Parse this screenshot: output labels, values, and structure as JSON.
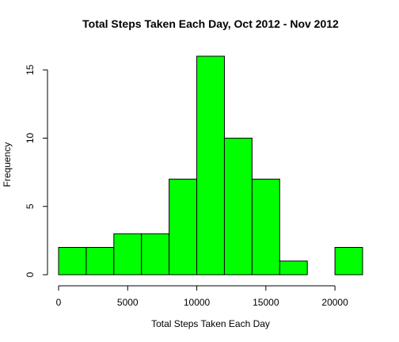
{
  "chart_data": {
    "type": "bar",
    "subtype": "histogram",
    "title": "Total Steps Taken Each Day, Oct 2012 - Nov 2012",
    "xlabel": "Total Steps Taken Each Day",
    "ylabel": "Frequency",
    "bin_edges": [
      0,
      2000,
      4000,
      6000,
      8000,
      10000,
      12000,
      14000,
      16000,
      18000,
      20000,
      22000
    ],
    "values": [
      2,
      2,
      3,
      3,
      7,
      16,
      10,
      7,
      1,
      0,
      2
    ],
    "xlim": [
      0,
      22000
    ],
    "ylim": [
      0,
      16
    ],
    "xticks": [
      0,
      5000,
      10000,
      15000,
      20000
    ],
    "xtick_labels": [
      "0",
      "5000",
      "10000",
      "15000",
      "20000"
    ],
    "yticks": [
      0,
      5,
      10,
      15
    ],
    "ytick_labels": [
      "0",
      "5",
      "10",
      "15"
    ],
    "bar_color": "#00ff00",
    "bar_border_color": "#000000",
    "grid": false,
    "legend": "none"
  }
}
